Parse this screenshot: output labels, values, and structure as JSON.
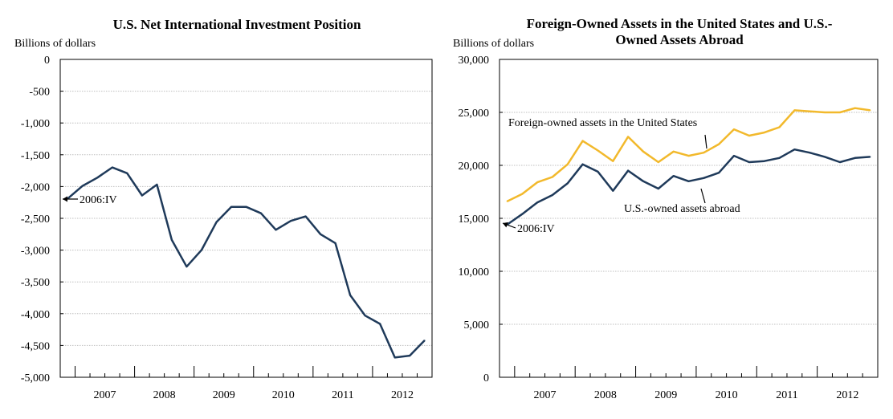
{
  "chart_data": [
    {
      "type": "line",
      "title": "U.S. Net International Investment Position",
      "ylabel": "Billions of dollars",
      "ylim": [
        -5000,
        0
      ],
      "yticks": [
        0,
        -500,
        -1000,
        -1500,
        -2000,
        -2500,
        -3000,
        -3500,
        -4000,
        -4500,
        -5000
      ],
      "ytick_labels": [
        "0",
        "-500",
        "-1,000",
        "-1,500",
        "-2,000",
        "-2,500",
        "-3,000",
        "-3,500",
        "-4,000",
        "-4,500",
        "-5,000"
      ],
      "x_labels": [
        "2007",
        "2008",
        "2009",
        "2010",
        "2011",
        "2012"
      ],
      "x": [
        "2006:IV",
        "2007:I",
        "2007:II",
        "2007:III",
        "2007:IV",
        "2008:I",
        "2008:II",
        "2008:III",
        "2008:IV",
        "2009:I",
        "2009:II",
        "2009:III",
        "2009:IV",
        "2010:I",
        "2010:II",
        "2010:III",
        "2010:IV",
        "2011:I",
        "2011:II",
        "2011:III",
        "2011:IV",
        "2012:I",
        "2012:II",
        "2012:III",
        "2012:IV"
      ],
      "series": [
        {
          "color": "#1f3a5a",
          "values": [
            -2190,
            -1990,
            -1860,
            -1700,
            -1790,
            -2140,
            -1970,
            -2840,
            -3260,
            -3000,
            -2560,
            -2320,
            -2320,
            -2420,
            -2680,
            -2540,
            -2470,
            -2750,
            -2890,
            -3710,
            -4030,
            -4160,
            -4690,
            -4660,
            -4420
          ]
        }
      ],
      "annotations": [
        {
          "text": "2006:IV"
        }
      ],
      "grid": true
    },
    {
      "type": "line",
      "title": "Foreign-Owned Assets in the United States and U.S.-Owned Assets Abroad",
      "ylabel": "Billions of dollars",
      "ylim": [
        0,
        30000
      ],
      "yticks": [
        0,
        5000,
        10000,
        15000,
        20000,
        25000,
        30000
      ],
      "ytick_labels": [
        "0",
        "5,000",
        "10,000",
        "15,000",
        "20,000",
        "25,000",
        "30,000"
      ],
      "x_labels": [
        "2007",
        "2008",
        "2009",
        "2010",
        "2011",
        "2012"
      ],
      "x": [
        "2006:IV",
        "2007:I",
        "2007:II",
        "2007:III",
        "2007:IV",
        "2008:I",
        "2008:II",
        "2008:III",
        "2008:IV",
        "2009:I",
        "2009:II",
        "2009:III",
        "2009:IV",
        "2010:I",
        "2010:II",
        "2010:III",
        "2010:IV",
        "2011:I",
        "2011:II",
        "2011:III",
        "2011:IV",
        "2012:I",
        "2012:II",
        "2012:III",
        "2012:IV"
      ],
      "series": [
        {
          "name": "Foreign-owned assets in the United States",
          "color": "#f2b92c",
          "values": [
            16600,
            17300,
            18400,
            18900,
            20100,
            22300,
            21400,
            20400,
            22700,
            21300,
            20300,
            21300,
            20900,
            21200,
            22000,
            23400,
            22800,
            23100,
            23600,
            25200,
            25100,
            25000,
            25000,
            25400,
            25200
          ]
        },
        {
          "name": "U.S.-owned assets abroad",
          "color": "#1f3a5a",
          "values": [
            14400,
            15400,
            16500,
            17200,
            18300,
            20100,
            19400,
            17600,
            19500,
            18500,
            17800,
            19000,
            18500,
            18800,
            19300,
            20900,
            20300,
            20400,
            20700,
            21500,
            21200,
            20800,
            20300,
            20700,
            20800
          ]
        }
      ],
      "annotations": [
        {
          "text": "2006:IV"
        }
      ],
      "grid": true
    }
  ]
}
